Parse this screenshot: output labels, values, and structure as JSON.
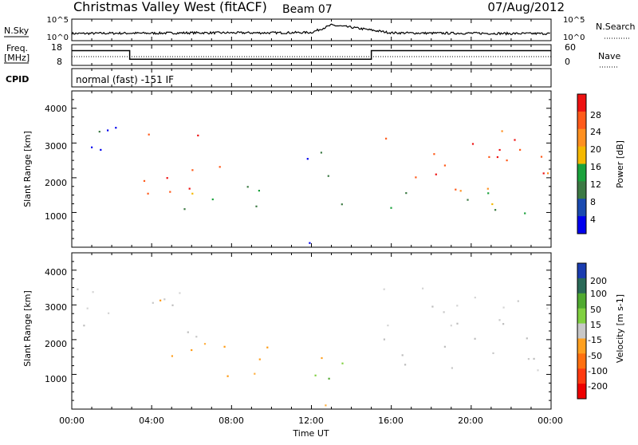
{
  "header": {
    "title": "Christmas Valley West (fitACF)",
    "beam": "Beam 07",
    "date": "07/Aug/2012"
  },
  "panel_labels": {
    "nsky": "N.Sky",
    "nsearch": "N.Search",
    "freq_line1": "Freq.",
    "freq_line2": "[MHz]",
    "nave": "Nave",
    "cpid": "CPID",
    "cpid_text": "normal (fast) -151 IF",
    "nsky_ticks": [
      "10^5",
      "10^0"
    ],
    "nsearch_ticks": [
      "10^5",
      "10^0"
    ],
    "freq_ticks": [
      "18",
      "8"
    ],
    "nave_ticks": [
      "60",
      "0"
    ]
  },
  "axes": {
    "x_label": "Time UT",
    "x_ticks": [
      "00:00",
      "04:00",
      "08:00",
      "12:00",
      "16:00",
      "20:00",
      "00:00"
    ],
    "y_label": "Slant Range [km]",
    "y_ticks": [
      "4000",
      "3000",
      "2000",
      "1000"
    ]
  },
  "colorbars": {
    "power": {
      "label": "Power [dB]",
      "ticks": [
        "28",
        "24",
        "20",
        "16",
        "12",
        "8",
        "4"
      ],
      "colors": [
        "#ee1111",
        "#ff5a1a",
        "#ff9020",
        "#f5b800",
        "#1aa23c",
        "#3c7a44",
        "#1a4ab0",
        "#0000ee"
      ]
    },
    "velocity": {
      "label": "Velocity [m s-1]",
      "ticks": [
        "200",
        "100",
        "50",
        "15",
        "-15",
        "-50",
        "-100",
        "-200"
      ],
      "colors": [
        "#1a3cb0",
        "#2a6a58",
        "#50aa30",
        "#80d040",
        "#c8c8c8",
        "#ffa020",
        "#ff7010",
        "#ff3a10",
        "#ee0000"
      ]
    }
  },
  "chart_data": [
    {
      "type": "line",
      "title": "N.Sky / N.Search",
      "x_unit": "hours UT",
      "x": [
        0,
        2,
        4,
        6,
        8,
        10,
        12,
        13,
        14,
        16,
        18,
        20,
        22,
        24
      ],
      "series": [
        {
          "name": "N.Sky",
          "values": [
            1.5,
            1.6,
            1.6,
            1.7,
            1.7,
            1.7,
            1.8,
            3.8,
            3.2,
            1.7,
            1.6,
            1.6,
            1.5,
            1.5
          ]
        }
      ]
    },
    {
      "type": "line",
      "title": "Freq. / Nave",
      "x_unit": "hours UT",
      "series": [
        {
          "name": "Freq.",
          "x": [
            0,
            2.9,
            2.9,
            15.0,
            15.0,
            24
          ],
          "values": [
            15.5,
            15.5,
            10.6,
            10.6,
            15.5,
            15.5
          ]
        }
      ]
    },
    {
      "type": "heatmap",
      "title": "Power [dB]",
      "xlabel": "Time UT",
      "ylabel": "Slant Range [km]",
      "xlim": [
        0,
        24
      ],
      "ylim": [
        0,
        4500
      ],
      "bands": [
        {
          "t": [
            0.0,
            2.5
          ],
          "range": [
            2000,
            3800
          ],
          "level": "mixed"
        },
        {
          "t": [
            2.9,
            6.5
          ],
          "range": [
            2900,
            3500
          ],
          "level": "strong"
        },
        {
          "t": [
            3.0,
            8.0
          ],
          "range": [
            1500,
            2800
          ],
          "level": "strong"
        },
        {
          "t": [
            5.0,
            10.0
          ],
          "range": [
            900,
            2000
          ],
          "level": "moderate"
        },
        {
          "t": [
            10.0,
            13.0
          ],
          "range": [
            0,
            200
          ],
          "level": "weak"
        },
        {
          "t": [
            11.0,
            13.5
          ],
          "range": [
            1200,
            2800
          ],
          "level": "weak"
        },
        {
          "t": [
            15.5,
            24.0
          ],
          "range": [
            1600,
            3400
          ],
          "level": "strong"
        },
        {
          "t": [
            15.5,
            24.0
          ],
          "range": [
            900,
            1800
          ],
          "level": "moderate"
        }
      ]
    },
    {
      "type": "heatmap",
      "title": "Velocity [m s-1]",
      "xlabel": "Time UT",
      "ylabel": "Slant Range [km]",
      "xlim": [
        0,
        24
      ],
      "ylim": [
        0,
        4500
      ],
      "bands": [
        {
          "t": [
            0.0,
            6.5
          ],
          "range": [
            2000,
            3500
          ],
          "level": "ground scatter"
        },
        {
          "t": [
            3.0,
            5.0
          ],
          "range": [
            2900,
            3500
          ],
          "level": "-50"
        },
        {
          "t": [
            3.0,
            6.0
          ],
          "range": [
            1500,
            2000
          ],
          "level": "-50"
        },
        {
          "t": [
            6.5,
            12.5
          ],
          "range": [
            900,
            2000
          ],
          "level": "-50"
        },
        {
          "t": [
            10.0,
            13.0
          ],
          "range": [
            0,
            200
          ],
          "level": "-50"
        },
        {
          "t": [
            12.0,
            13.8
          ],
          "range": [
            900,
            2500
          ],
          "level": "50"
        },
        {
          "t": [
            15.5,
            24.0
          ],
          "range": [
            1000,
            3600
          ],
          "level": "ground scatter"
        }
      ]
    }
  ]
}
